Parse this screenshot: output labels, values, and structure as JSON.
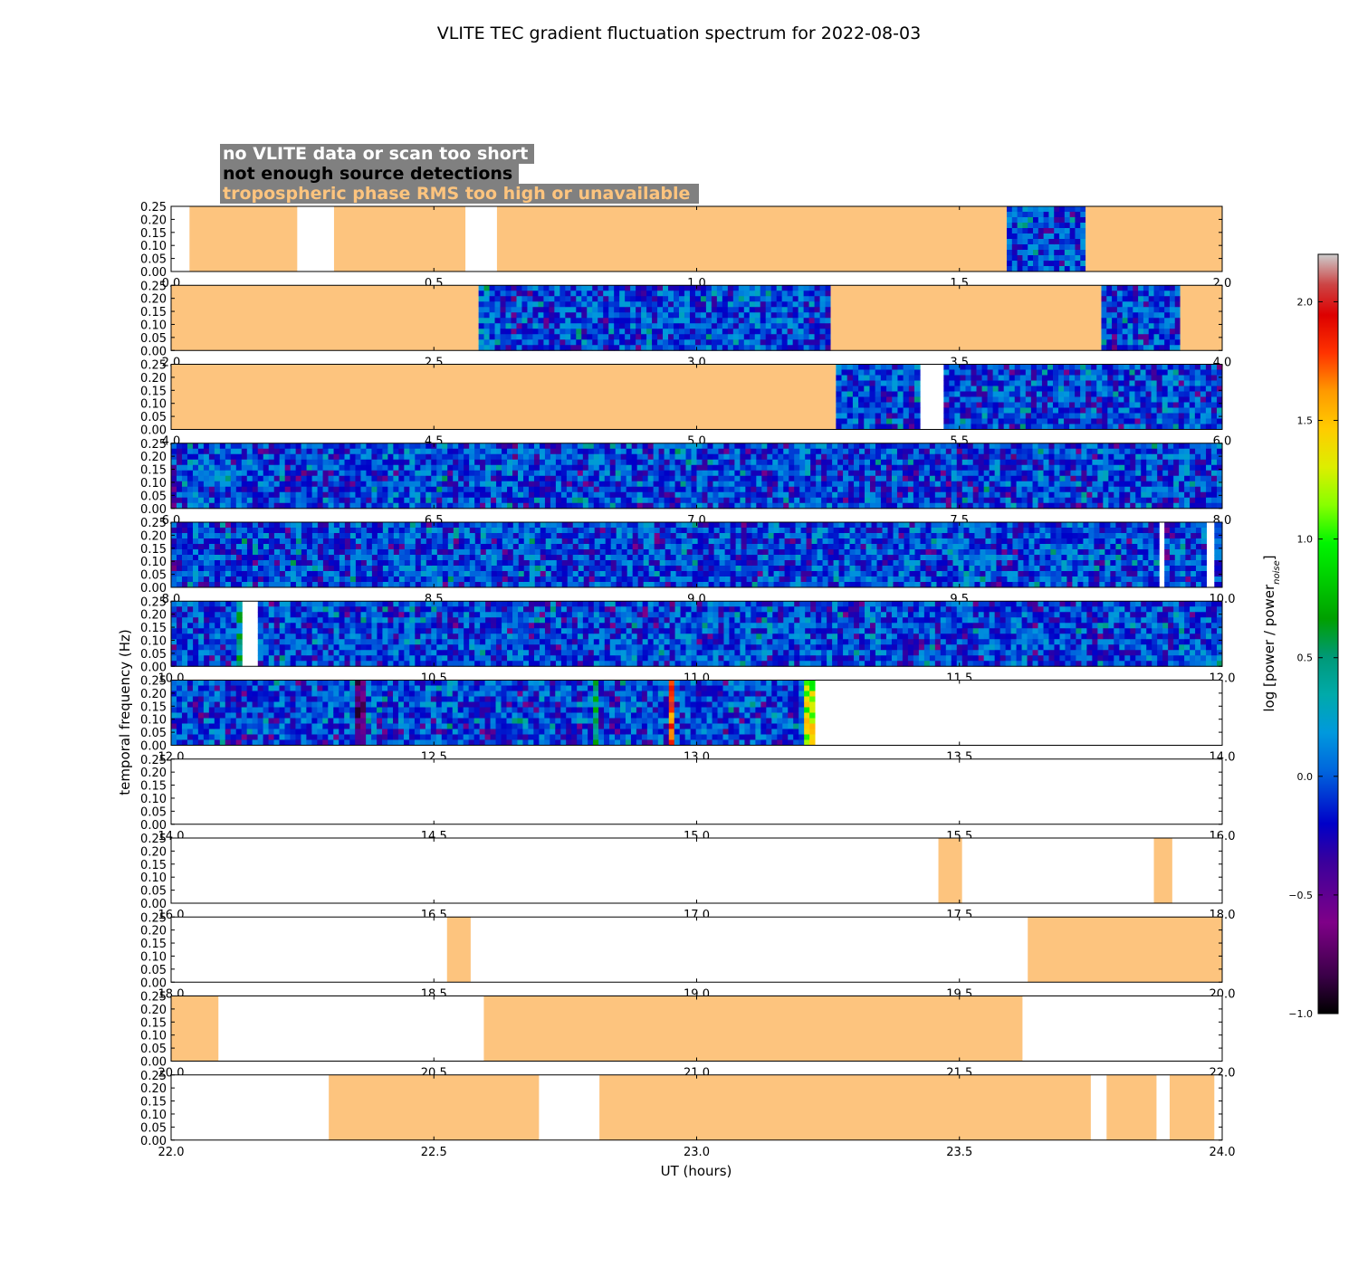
{
  "chart_data": {
    "type": "heatmap",
    "title": "VLITE TEC gradient fluctuation spectrum for 2022-08-03",
    "xlabel": "UT (hours)",
    "ylabel": "temporal frequency (Hz)",
    "colorbar": {
      "label": "log [power / power_noise]",
      "range": [
        -1.0,
        2.2
      ],
      "ticks": [
        "−1.0",
        "−0.5",
        "0.0",
        "0.5",
        "1.0",
        "1.5",
        "2.0"
      ],
      "colormap": "nipy_spectral"
    },
    "legend": {
      "placement": "top-left",
      "entries": [
        {
          "label": "no VLITE data or scan too short",
          "text_color": "#ffffff",
          "status": "white"
        },
        {
          "label": "not enough source detections",
          "text_color": "#000000",
          "status": "black"
        },
        {
          "label": "tropospheric phase RMS too high or unavailable",
          "text_color": "#fdc47e",
          "status": "orange"
        }
      ]
    },
    "status_colors": {
      "white": "#ffffff",
      "orange": "#fdc47e",
      "box": "#808080"
    },
    "y_ticks": [
      "0.00",
      "0.05",
      "0.10",
      "0.15",
      "0.20",
      "0.25"
    ],
    "ylim": [
      0,
      0.25
    ],
    "panels": [
      {
        "xlim": [
          0,
          2
        ],
        "x_ticks": [
          "0.0",
          "0.5",
          "1.0",
          "1.5",
          "2.0"
        ],
        "segments": [
          {
            "start": 0.0,
            "end": 0.035,
            "status": "white"
          },
          {
            "start": 0.035,
            "end": 0.24,
            "status": "orange"
          },
          {
            "start": 0.24,
            "end": 0.31,
            "status": "white"
          },
          {
            "start": 0.31,
            "end": 0.56,
            "status": "orange"
          },
          {
            "start": 0.56,
            "end": 0.62,
            "status": "white"
          },
          {
            "start": 0.62,
            "end": 1.59,
            "status": "orange"
          },
          {
            "start": 1.59,
            "end": 1.74,
            "status": "data"
          },
          {
            "start": 1.74,
            "end": 2.0,
            "status": "orange"
          }
        ]
      },
      {
        "xlim": [
          2,
          4
        ],
        "x_ticks": [
          "2.0",
          "2.5",
          "3.0",
          "3.5",
          "4.0"
        ],
        "segments": [
          {
            "start": 2.0,
            "end": 2.585,
            "status": "orange"
          },
          {
            "start": 2.585,
            "end": 3.255,
            "status": "data"
          },
          {
            "start": 3.255,
            "end": 3.77,
            "status": "orange"
          },
          {
            "start": 3.77,
            "end": 3.92,
            "status": "data"
          },
          {
            "start": 3.92,
            "end": 4.0,
            "status": "orange"
          }
        ]
      },
      {
        "xlim": [
          4,
          6
        ],
        "x_ticks": [
          "4.0",
          "4.5",
          "5.0",
          "5.5",
          "6.0"
        ],
        "segments": [
          {
            "start": 4.0,
            "end": 5.265,
            "status": "orange"
          },
          {
            "start": 5.265,
            "end": 5.425,
            "status": "data"
          },
          {
            "start": 5.425,
            "end": 5.47,
            "status": "white"
          },
          {
            "start": 5.47,
            "end": 6.0,
            "status": "data"
          }
        ]
      },
      {
        "xlim": [
          6,
          8
        ],
        "x_ticks": [
          "6.0",
          "6.5",
          "7.0",
          "7.5",
          "8.0"
        ],
        "segments": [
          {
            "start": 6.0,
            "end": 8.0,
            "status": "data"
          }
        ]
      },
      {
        "xlim": [
          8,
          10
        ],
        "x_ticks": [
          "8.0",
          "8.5",
          "9.0",
          "9.5",
          "10.0"
        ],
        "segments": [
          {
            "start": 8.0,
            "end": 9.88,
            "status": "data"
          },
          {
            "start": 9.88,
            "end": 9.89,
            "status": "white"
          },
          {
            "start": 9.89,
            "end": 9.97,
            "status": "data"
          },
          {
            "start": 9.97,
            "end": 9.985,
            "status": "white"
          },
          {
            "start": 9.985,
            "end": 10.0,
            "status": "data"
          }
        ]
      },
      {
        "xlim": [
          10,
          12
        ],
        "x_ticks": [
          "10.0",
          "10.5",
          "11.0",
          "11.5",
          "12.0"
        ],
        "segments": [
          {
            "start": 10.0,
            "end": 10.135,
            "status": "data"
          },
          {
            "start": 10.135,
            "end": 10.165,
            "status": "white"
          },
          {
            "start": 10.165,
            "end": 12.0,
            "status": "data"
          }
        ]
      },
      {
        "xlim": [
          12,
          14
        ],
        "x_ticks": [
          "12.0",
          "12.5",
          "13.0",
          "13.5",
          "14.0"
        ],
        "segments": [
          {
            "start": 12.0,
            "end": 13.225,
            "status": "data"
          },
          {
            "start": 13.225,
            "end": 14.0,
            "status": "white"
          }
        ]
      },
      {
        "xlim": [
          14,
          16
        ],
        "x_ticks": [
          "14.0",
          "14.5",
          "15.0",
          "15.5",
          "16.0"
        ],
        "segments": [
          {
            "start": 14.0,
            "end": 16.0,
            "status": "white"
          }
        ]
      },
      {
        "xlim": [
          16,
          18
        ],
        "x_ticks": [
          "16.0",
          "16.5",
          "17.0",
          "17.5",
          "18.0"
        ],
        "segments": [
          {
            "start": 16.0,
            "end": 17.46,
            "status": "white"
          },
          {
            "start": 17.46,
            "end": 17.505,
            "status": "orange"
          },
          {
            "start": 17.505,
            "end": 17.87,
            "status": "white"
          },
          {
            "start": 17.87,
            "end": 17.905,
            "status": "orange"
          },
          {
            "start": 17.905,
            "end": 18.0,
            "status": "white"
          }
        ]
      },
      {
        "xlim": [
          18,
          20
        ],
        "x_ticks": [
          "18.0",
          "18.5",
          "19.0",
          "19.5",
          "20.0"
        ],
        "segments": [
          {
            "start": 18.0,
            "end": 18.525,
            "status": "white"
          },
          {
            "start": 18.525,
            "end": 18.57,
            "status": "orange"
          },
          {
            "start": 18.57,
            "end": 19.63,
            "status": "white"
          },
          {
            "start": 19.63,
            "end": 20.0,
            "status": "orange"
          }
        ]
      },
      {
        "xlim": [
          20,
          22
        ],
        "x_ticks": [
          "20.0",
          "20.5",
          "21.0",
          "21.5",
          "22.0"
        ],
        "segments": [
          {
            "start": 20.0,
            "end": 20.09,
            "status": "orange"
          },
          {
            "start": 20.09,
            "end": 20.595,
            "status": "white"
          },
          {
            "start": 20.595,
            "end": 21.62,
            "status": "orange"
          },
          {
            "start": 21.62,
            "end": 22.0,
            "status": "white"
          }
        ]
      },
      {
        "xlim": [
          22,
          24
        ],
        "x_ticks": [
          "22.0",
          "22.5",
          "23.0",
          "23.5",
          "24.0"
        ],
        "segments": [
          {
            "start": 22.0,
            "end": 22.3,
            "status": "white"
          },
          {
            "start": 22.3,
            "end": 22.7,
            "status": "orange"
          },
          {
            "start": 22.7,
            "end": 22.815,
            "status": "white"
          },
          {
            "start": 22.815,
            "end": 23.75,
            "status": "orange"
          },
          {
            "start": 23.75,
            "end": 23.78,
            "status": "white"
          },
          {
            "start": 23.78,
            "end": 23.875,
            "status": "orange"
          },
          {
            "start": 23.875,
            "end": 23.9,
            "status": "white"
          },
          {
            "start": 23.9,
            "end": 23.985,
            "status": "orange"
          },
          {
            "start": 23.985,
            "end": 24.0,
            "status": "white"
          }
        ]
      }
    ],
    "spectral_features": [
      {
        "time": 10.13,
        "intensity": 0.45
      },
      {
        "time": 12.36,
        "intensity": -0.65
      },
      {
        "time": 12.81,
        "intensity": 0.55
      },
      {
        "time": 12.95,
        "intensity": 1.75
      },
      {
        "time": 13.215,
        "intensity": 1.25
      }
    ]
  }
}
